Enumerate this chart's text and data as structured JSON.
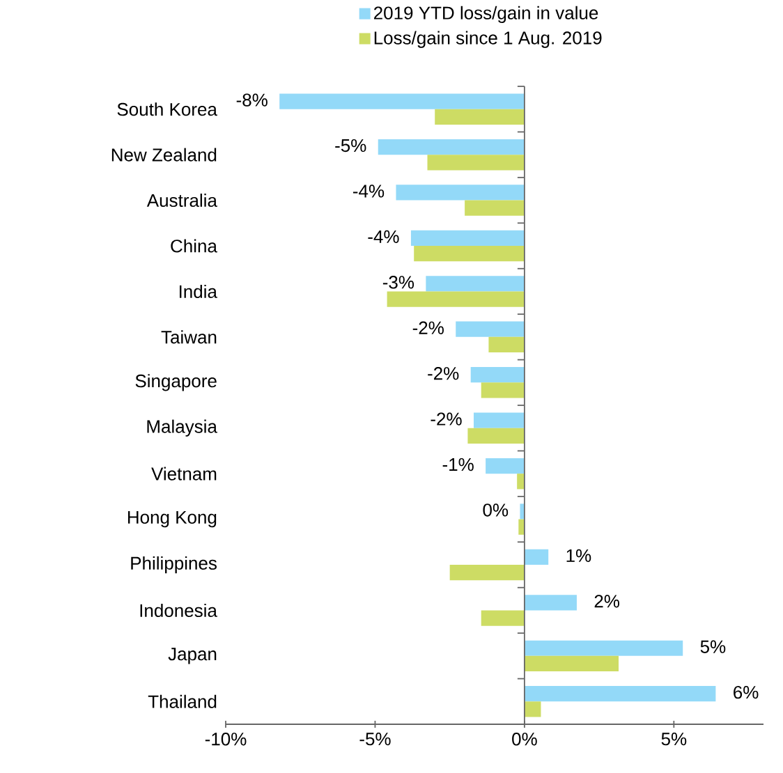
{
  "chart_data": {
    "type": "bar",
    "orientation": "horizontal",
    "categories": [
      "South Korea",
      "New Zealand",
      "Australia",
      "China",
      "India",
      "Taiwan",
      "Singapore",
      "Malaysia",
      "Vietnam",
      "Hong Kong",
      "Philippines",
      "Indonesia",
      "Japan",
      "Thailand"
    ],
    "series": [
      {
        "name": "2019 YTD loss/gain in value",
        "color": "#93d9f8",
        "values": [
          -8.2,
          -4.9,
          -4.3,
          -3.8,
          -3.3,
          -2.3,
          -1.8,
          -1.7,
          -1.3,
          -0.15,
          0.8,
          1.75,
          5.3,
          6.4
        ],
        "value_labels": [
          "-8%",
          "-5%",
          "-4%",
          "-4%",
          "-3%",
          "-2%",
          "-2%",
          "-2%",
          "-1%",
          "0%",
          "1%",
          "2%",
          "5%",
          "6%"
        ]
      },
      {
        "name": "Loss/gain since 1 Aug. 2019",
        "color": "#cddc64",
        "values": [
          -3.0,
          -3.25,
          -2.0,
          -3.7,
          -4.6,
          -1.2,
          -1.45,
          -1.9,
          -0.25,
          -0.2,
          -2.5,
          -1.45,
          3.15,
          0.55
        ]
      }
    ],
    "xlim": [
      -10,
      8
    ],
    "xticks": [
      {
        "value": -10,
        "label": "-10%"
      },
      {
        "value": -5,
        "label": "-5%"
      },
      {
        "value": 0,
        "label": "0%"
      },
      {
        "value": 5,
        "label": "5%"
      }
    ],
    "legend": "top right"
  }
}
